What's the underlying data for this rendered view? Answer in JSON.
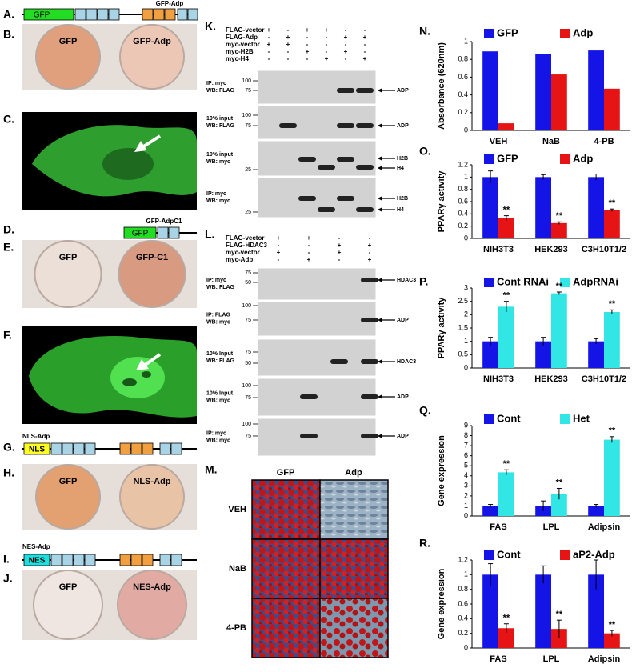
{
  "panels": {
    "A": {
      "letter": "A.",
      "construct": "GFP-Adp",
      "box": "GFP"
    },
    "B": {
      "letter": "B.",
      "left": "GFP",
      "right": "GFP-Adp"
    },
    "C": {
      "letter": "C."
    },
    "D": {
      "letter": "D.",
      "construct": "GFP-AdpC1",
      "box": "GFP"
    },
    "E": {
      "letter": "E.",
      "left": "GFP",
      "right": "GFP-C1"
    },
    "F": {
      "letter": "F."
    },
    "G": {
      "letter": "G.",
      "construct": "NLS-Adp",
      "box": "NLS"
    },
    "H": {
      "letter": "H.",
      "left": "GFP",
      "right": "NLS-Adp"
    },
    "I": {
      "letter": "I.",
      "construct": "NES-Adp",
      "box": "NES"
    },
    "J": {
      "letter": "J.",
      "left": "GFP",
      "right": "NES-Adp"
    },
    "K": {
      "letter": "K.",
      "conditions": [
        {
          "name": "FLAG-vector",
          "signs": [
            "+",
            "-",
            "+",
            "+",
            "-",
            "-"
          ]
        },
        {
          "name": "FLAG-Adp",
          "signs": [
            "-",
            "+",
            "-",
            "-",
            "+",
            "+"
          ]
        },
        {
          "name": "myc-vector",
          "signs": [
            "+",
            "+",
            "-",
            "-",
            "-",
            "-"
          ]
        },
        {
          "name": "myc-H2B",
          "signs": [
            "-",
            "-",
            "+",
            "-",
            "+",
            "-"
          ]
        },
        {
          "name": "myc-H4",
          "signs": [
            "-",
            "-",
            "-",
            "+",
            "-",
            "+"
          ]
        }
      ],
      "blots": [
        {
          "label": [
            "IP: myc",
            "WB: FLAG"
          ],
          "markers": [
            100,
            75
          ],
          "targets": [
            "ADP"
          ]
        },
        {
          "label": [
            "10% input",
            "WB: FLAG"
          ],
          "markers": [
            100,
            75
          ],
          "targets": [
            "ADP"
          ]
        },
        {
          "label": [
            "10% input",
            "WB: myc"
          ],
          "markers": [
            25
          ],
          "targets": [
            "H2B",
            "H4"
          ]
        },
        {
          "label": [
            "IP: myc",
            "WB: myc"
          ],
          "markers": [
            25
          ],
          "targets": [
            "H2B",
            "H4"
          ]
        }
      ]
    },
    "L": {
      "letter": "L.",
      "conditions": [
        {
          "name": "FLAG-vector",
          "signs": [
            "+",
            "+",
            "-",
            "-"
          ]
        },
        {
          "name": "FLAG-HDAC3",
          "signs": [
            "-",
            "-",
            "+",
            "+"
          ]
        },
        {
          "name": "myc-vector",
          "signs": [
            "+",
            "-",
            "+",
            "-"
          ]
        },
        {
          "name": "myc-Adp",
          "signs": [
            "-",
            "+",
            "-",
            "+"
          ]
        }
      ],
      "blots": [
        {
          "label": [
            "IP: myc",
            "WB: FLAG"
          ],
          "markers": [
            75,
            50
          ],
          "targets": [
            "HDAC3"
          ]
        },
        {
          "label": [
            "IP: FLAG",
            "WB: myc"
          ],
          "markers": [
            100,
            75
          ],
          "targets": [
            "ADP"
          ]
        },
        {
          "label": [
            "10% Input",
            "WB: FLAG"
          ],
          "markers": [
            75,
            50
          ],
          "targets": [
            "HDAC3"
          ]
        },
        {
          "label": [
            "10% Input",
            "WB: myc"
          ],
          "markers": [
            100,
            75
          ],
          "targets": [
            "ADP"
          ]
        },
        {
          "label": [
            "IP: myc",
            "WB: myc"
          ],
          "markers": [
            100,
            75
          ],
          "targets": [
            "ADP"
          ]
        }
      ]
    },
    "M": {
      "letter": "M.",
      "columns": [
        "GFP",
        "Adp"
      ],
      "rows": [
        "VEH",
        "NaB",
        "4-PB"
      ]
    }
  },
  "chart_data": [
    {
      "type": "bar",
      "title": "N.",
      "y_label": "Absorbance (620nm)",
      "categories": [
        "VEH",
        "NaB",
        "4-PB"
      ],
      "series": [
        {
          "name": "GFP",
          "color": "#1414e6",
          "values": [
            0.89,
            0.86,
            0.9
          ]
        },
        {
          "name": "Adp",
          "color": "#e61414",
          "values": [
            0.08,
            0.63,
            0.47
          ]
        }
      ],
      "ylim": [
        0,
        1
      ],
      "yticks": [
        0,
        0.2,
        0.4,
        0.6,
        0.8,
        1
      ]
    },
    {
      "type": "bar",
      "title": "O.",
      "y_label": "PPARγ activity",
      "categories": [
        "NIH3T3",
        "HEK293",
        "C3H10T1/2"
      ],
      "series": [
        {
          "name": "GFP",
          "color": "#1414e6",
          "values": [
            1,
            1,
            1
          ],
          "errors": [
            0.1,
            0.04,
            0.05
          ]
        },
        {
          "name": "Adp",
          "color": "#e61414",
          "values": [
            0.33,
            0.25,
            0.46
          ],
          "errors": [
            0.04,
            0.02,
            0.02
          ],
          "annotations": [
            "**",
            "**",
            "**"
          ]
        }
      ],
      "ylim": [
        0,
        1.2
      ],
      "yticks": [
        0,
        0.2,
        0.4,
        0.6,
        0.8,
        1,
        1.2
      ]
    },
    {
      "type": "bar",
      "title": "P.",
      "y_label": "PPARγ activity",
      "categories": [
        "NIH3T3",
        "HEK293",
        "C3H10T1/2"
      ],
      "series": [
        {
          "name": "Cont RNAi",
          "color": "#1414e6",
          "values": [
            1,
            1,
            1
          ],
          "errors": [
            0.15,
            0.15,
            0.1
          ]
        },
        {
          "name": "AdpRNAi",
          "color": "#33e6e6",
          "values": [
            2.3,
            2.8,
            2.1
          ],
          "errors": [
            0.2,
            0.05,
            0.08
          ],
          "annotations": [
            "**",
            "**",
            "**"
          ]
        }
      ],
      "ylim": [
        0,
        3
      ],
      "yticks": [
        0,
        0.5,
        1,
        1.5,
        2,
        2.5,
        3
      ]
    },
    {
      "type": "bar",
      "title": "Q.",
      "y_label": "Gene expression",
      "categories": [
        "FAS",
        "LPL",
        "Adipsin"
      ],
      "series": [
        {
          "name": "Cont",
          "color": "#1414e6",
          "values": [
            1,
            1,
            1
          ],
          "errors": [
            0.15,
            0.5,
            0.15
          ]
        },
        {
          "name": "Het",
          "color": "#33e6e6",
          "values": [
            4.35,
            2.2,
            7.6
          ],
          "errors": [
            0.25,
            0.55,
            0.3
          ],
          "annotations": [
            "**",
            "**",
            "**"
          ]
        }
      ],
      "ylim": [
        0,
        9
      ],
      "yticks": [
        0,
        1,
        2,
        3,
        4,
        5,
        6,
        7,
        8,
        9
      ]
    },
    {
      "type": "bar",
      "title": "R.",
      "y_label": "Gene expression",
      "categories": [
        "FAS",
        "LPL",
        "Adipsin"
      ],
      "series": [
        {
          "name": "Cont",
          "color": "#1414e6",
          "values": [
            1,
            1,
            1
          ],
          "errors": [
            0.15,
            0.12,
            0.2
          ]
        },
        {
          "name": "aP2-Adp",
          "color": "#e61414",
          "values": [
            0.27,
            0.26,
            0.2
          ],
          "errors": [
            0.06,
            0.12,
            0.04
          ],
          "annotations": [
            "**",
            "**",
            "**"
          ]
        }
      ],
      "ylim": [
        0,
        1.2
      ],
      "yticks": [
        0,
        0.2,
        0.4,
        0.6,
        0.8,
        1,
        1.2
      ]
    }
  ]
}
